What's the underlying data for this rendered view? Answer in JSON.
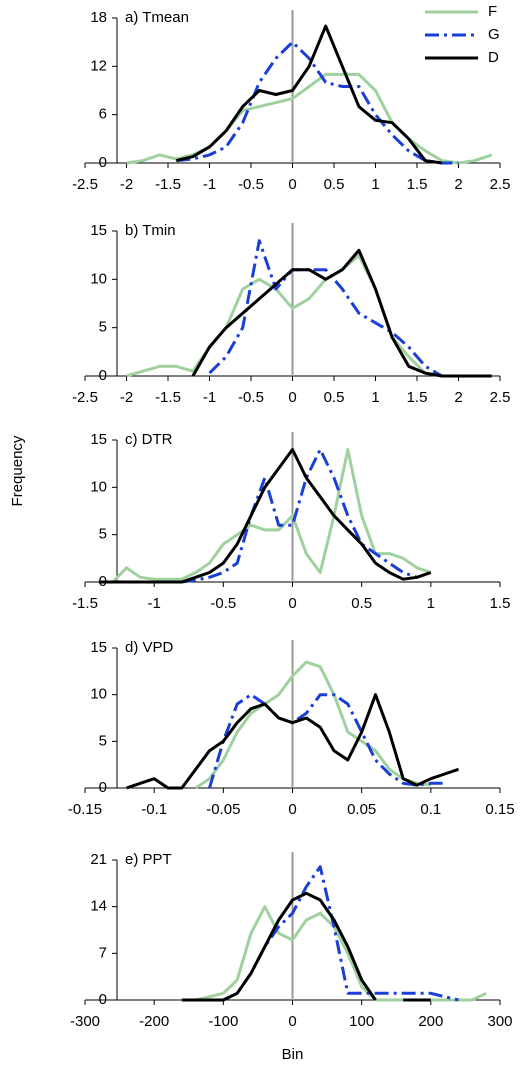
{
  "chart_data": [
    {
      "type": "line",
      "title": "a) Tmean",
      "xlim": [
        -2.5,
        2.5
      ],
      "xticks": [
        -2.5,
        -2,
        -1.5,
        -1,
        -0.5,
        0,
        0.5,
        1,
        1.5,
        2,
        2.5
      ],
      "ylim": [
        0,
        18
      ],
      "yticks": [
        0,
        6,
        12,
        18
      ],
      "vline": 0,
      "legend": "upper right",
      "x": [
        -2,
        -1.8,
        -1.6,
        -1.4,
        -1.2,
        -1,
        -0.8,
        -0.6,
        -0.4,
        -0.2,
        0,
        0.2,
        0.4,
        0.6,
        0.8,
        1,
        1.2,
        1.4,
        1.6,
        1.8,
        2,
        2.2,
        2.4
      ],
      "series": [
        {
          "name": "F",
          "color": "#9fd19f",
          "line_style": "solid",
          "values": [
            0,
            0.3,
            1,
            0.5,
            1,
            2,
            4,
            6.5,
            7,
            7.5,
            8,
            9.5,
            11,
            11,
            11,
            9,
            5,
            3,
            1.5,
            0.3,
            0,
            0.3,
            1
          ]
        },
        {
          "name": "G",
          "color": "#1a3fd6",
          "line_style": "dashdot",
          "values": [
            null,
            null,
            null,
            0.3,
            0.5,
            1,
            2,
            5,
            10,
            13,
            15,
            13,
            10,
            9.5,
            9.5,
            6,
            3.5,
            1.5,
            0.3,
            0,
            0,
            null,
            null
          ]
        },
        {
          "name": "D",
          "color": "#000000",
          "line_style": "solid",
          "values": [
            null,
            null,
            null,
            0.3,
            0.8,
            2,
            4,
            7,
            9,
            8.5,
            9,
            12,
            17,
            12,
            7,
            5.3,
            5,
            3,
            0.3,
            0,
            null,
            null,
            null
          ]
        }
      ]
    },
    {
      "type": "line",
      "title": "b) Tmin",
      "xlim": [
        -2.5,
        2.5
      ],
      "xticks": [
        -2.5,
        -2,
        -1.5,
        -1,
        -0.5,
        0,
        0.5,
        1,
        1.5,
        2,
        2.5
      ],
      "ylim": [
        0,
        15
      ],
      "yticks": [
        0,
        5,
        10,
        15
      ],
      "vline": 0,
      "x": [
        -2,
        -1.8,
        -1.6,
        -1.4,
        -1.2,
        -1,
        -0.8,
        -0.6,
        -0.4,
        -0.2,
        0,
        0.2,
        0.4,
        0.6,
        0.8,
        1,
        1.2,
        1.4,
        1.6,
        1.8,
        2,
        2.2,
        2.4
      ],
      "series": [
        {
          "name": "F",
          "color": "#9fd19f",
          "line_style": "solid",
          "values": [
            0,
            0.5,
            1,
            1,
            0.5,
            3,
            5,
            9,
            10,
            9,
            7,
            8,
            10,
            11,
            12.5,
            9,
            4,
            2,
            0.3,
            0,
            0,
            0,
            0
          ]
        },
        {
          "name": "G",
          "color": "#1a3fd6",
          "line_style": "dashdot",
          "values": [
            null,
            null,
            null,
            null,
            null,
            0.3,
            2,
            5,
            14,
            9,
            11,
            11,
            11,
            9,
            6.5,
            5.5,
            4.5,
            3,
            1,
            0,
            0,
            null,
            null
          ]
        },
        {
          "name": "D",
          "color": "#000000",
          "line_style": "solid",
          "values": [
            null,
            null,
            null,
            null,
            0,
            3,
            5,
            6.5,
            8,
            9.5,
            11,
            11,
            10,
            11,
            13,
            9,
            4,
            1,
            0.3,
            0,
            0,
            0,
            0
          ]
        }
      ]
    },
    {
      "type": "line",
      "title": "c) DTR",
      "ylabel": "Frequency",
      "xlim": [
        -1.5,
        1.5
      ],
      "xticks": [
        -1.5,
        -1,
        -0.5,
        0,
        0.5,
        1,
        1.5
      ],
      "ylim": [
        0,
        15
      ],
      "yticks": [
        0,
        5,
        10,
        15
      ],
      "vline": 0,
      "x": [
        -1.4,
        -1.3,
        -1.2,
        -1.1,
        -1,
        -0.9,
        -0.8,
        -0.7,
        -0.6,
        -0.5,
        -0.4,
        -0.3,
        -0.2,
        -0.1,
        0,
        0.1,
        0.2,
        0.3,
        0.4,
        0.5,
        0.6,
        0.7,
        0.8,
        0.9,
        1
      ],
      "series": [
        {
          "name": "F",
          "color": "#9fd19f",
          "line_style": "solid",
          "values": [
            0,
            0,
            1.5,
            0.5,
            0.3,
            0.3,
            0.3,
            1,
            2,
            4,
            5,
            6,
            5.5,
            5.5,
            7,
            3,
            1,
            7,
            14,
            7,
            3,
            3,
            2.5,
            1.5,
            1
          ]
        },
        {
          "name": "G",
          "color": "#1a3fd6",
          "line_style": "dashdot",
          "values": [
            null,
            null,
            null,
            null,
            null,
            null,
            0,
            0.2,
            0.5,
            1,
            2,
            7,
            11,
            6,
            6,
            11,
            14,
            11,
            7,
            4,
            3,
            2,
            1,
            0.5,
            null
          ]
        },
        {
          "name": "D",
          "color": "#000000",
          "line_style": "solid",
          "values": [
            0,
            0,
            0,
            0,
            0,
            0,
            0,
            0.5,
            1,
            2,
            4,
            7,
            10,
            12,
            14,
            11,
            9,
            7,
            5.5,
            4,
            2,
            1,
            0.3,
            0.5,
            1
          ]
        }
      ]
    },
    {
      "type": "line",
      "title": "d) VPD",
      "xlim": [
        -0.15,
        0.15
      ],
      "xticks": [
        -0.15,
        -0.1,
        -0.05,
        0,
        0.05,
        0.1,
        0.15
      ],
      "ylim": [
        0,
        15
      ],
      "yticks": [
        0,
        5,
        10,
        15
      ],
      "vline": 0,
      "x": [
        -0.12,
        -0.11,
        -0.1,
        -0.09,
        -0.08,
        -0.07,
        -0.06,
        -0.05,
        -0.04,
        -0.03,
        -0.02,
        -0.01,
        0,
        0.01,
        0.02,
        0.03,
        0.04,
        0.05,
        0.06,
        0.07,
        0.08,
        0.09,
        0.1,
        0.11,
        0.12
      ],
      "series": [
        {
          "name": "F",
          "color": "#9fd19f",
          "line_style": "solid",
          "values": [
            null,
            null,
            null,
            null,
            null,
            0,
            1,
            3,
            6,
            8,
            9,
            10,
            12,
            13.5,
            13,
            10,
            6,
            5,
            4,
            2,
            1,
            0.5,
            0.3,
            null,
            null
          ]
        },
        {
          "name": "G",
          "color": "#1a3fd6",
          "line_style": "dashdot",
          "values": [
            null,
            null,
            null,
            null,
            null,
            null,
            0,
            5,
            9,
            10,
            9,
            7.5,
            7,
            8,
            10,
            10,
            9,
            6,
            3,
            1.5,
            0.5,
            0.3,
            0.5,
            0.5,
            null
          ]
        },
        {
          "name": "D",
          "color": "#000000",
          "line_style": "solid",
          "values": [
            0,
            0.5,
            1,
            0,
            0,
            2,
            4,
            5,
            7,
            8.5,
            9,
            7.5,
            7,
            7.5,
            6.5,
            4,
            3,
            6,
            10,
            6,
            1,
            0.3,
            1,
            1.5,
            2
          ]
        }
      ]
    },
    {
      "type": "line",
      "title": "e) PPT",
      "xlabel": "Bin",
      "xlim": [
        -300,
        300
      ],
      "xticks": [
        -300,
        -200,
        -100,
        0,
        100,
        200,
        300
      ],
      "ylim": [
        0,
        21
      ],
      "yticks": [
        0,
        7,
        14,
        21
      ],
      "vline": 0,
      "x": [
        -160,
        -140,
        -120,
        -100,
        -80,
        -60,
        -40,
        -20,
        0,
        20,
        40,
        60,
        80,
        100,
        120,
        140,
        160,
        180,
        200,
        220,
        240,
        260,
        280
      ],
      "series": [
        {
          "name": "F",
          "color": "#9fd19f",
          "line_style": "solid",
          "values": [
            0,
            0,
            0.5,
            1,
            3,
            10,
            14,
            10,
            9,
            12,
            13,
            11,
            7,
            2,
            0,
            0,
            0,
            0,
            0,
            0,
            0,
            0,
            1
          ]
        },
        {
          "name": "G",
          "color": "#1a3fd6",
          "line_style": "dashdot",
          "values": [
            null,
            null,
            null,
            0,
            1,
            4,
            8,
            11,
            13,
            17,
            20,
            11,
            1,
            1,
            1,
            1,
            1,
            1,
            1,
            0.5,
            0,
            null,
            null
          ]
        },
        {
          "name": "D",
          "color": "#000000",
          "line_style": "solid",
          "values": [
            0,
            0,
            0,
            0,
            1,
            4,
            8,
            12,
            15,
            16,
            15,
            12,
            8,
            3,
            0,
            null,
            0,
            0,
            0,
            null,
            null,
            null,
            null
          ]
        }
      ]
    }
  ]
}
